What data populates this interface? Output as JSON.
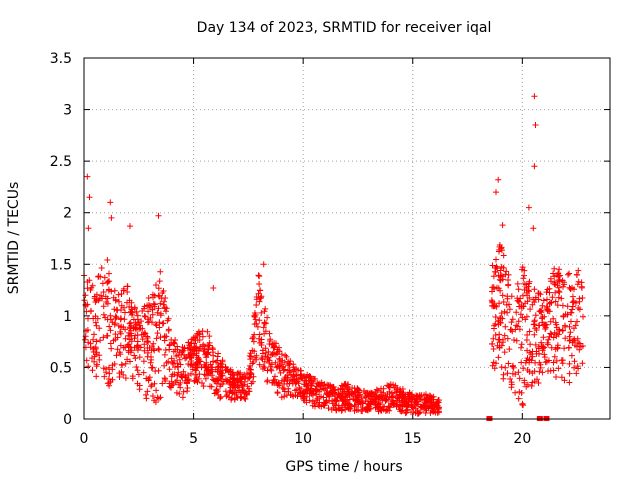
{
  "chart_data": {
    "type": "scatter",
    "title": "Day 134 of 2023, SRMTID for receiver iqal",
    "xlabel": "GPS time / hours",
    "ylabel": "SRMTID / TECUs",
    "xlim": [
      0,
      24
    ],
    "ylim": [
      0,
      3.5
    ],
    "x_ticks": [
      0,
      5,
      10,
      15,
      20
    ],
    "x_tick_labels": [
      "0",
      "5",
      "10",
      "15",
      "20"
    ],
    "y_ticks": [
      0,
      0.5,
      1,
      1.5,
      2,
      2.5,
      3,
      3.5
    ],
    "y_tick_labels": [
      "0",
      "0.5",
      "1",
      "1.5",
      "2",
      "2.5",
      "3",
      "3.5"
    ],
    "grid": true,
    "marker": "+",
    "color": "#ff0000",
    "envelope": {
      "description": "dense scatter summarised as typical value ranges per hour",
      "x": [
        0,
        0.5,
        1,
        1.5,
        2,
        2.5,
        3,
        3.5,
        4,
        4.5,
        5,
        5.5,
        6,
        6.5,
        7,
        7.5,
        8,
        8.5,
        9,
        9.5,
        10,
        10.5,
        11,
        11.5,
        12,
        12.5,
        13,
        13.5,
        14,
        14.5,
        15,
        15.5,
        16.2
      ],
      "low": [
        0.5,
        0.4,
        0.3,
        0.35,
        0.4,
        0.3,
        0.1,
        0.2,
        0.3,
        0.2,
        0.35,
        0.3,
        0.2,
        0.2,
        0.15,
        0.2,
        0.5,
        0.3,
        0.2,
        0.2,
        0.15,
        0.12,
        0.1,
        0.08,
        0.08,
        0.07,
        0.07,
        0.07,
        0.08,
        0.06,
        0.05,
        0.05,
        0.05
      ],
      "high": [
        1.5,
        1.3,
        1.6,
        1.2,
        1.3,
        1.0,
        1.2,
        1.5,
        0.8,
        0.7,
        0.8,
        0.9,
        0.7,
        0.5,
        0.45,
        0.5,
        1.5,
        0.8,
        0.7,
        0.55,
        0.45,
        0.4,
        0.35,
        0.3,
        0.35,
        0.3,
        0.25,
        0.3,
        0.35,
        0.3,
        0.25,
        0.25,
        0.2
      ]
    },
    "envelope_late": {
      "x": [
        18.6,
        19.0,
        19.5,
        20.0,
        20.5,
        21.0,
        21.5,
        22.0,
        22.5,
        22.8
      ],
      "low": [
        0.5,
        0.4,
        0.3,
        0.1,
        0.3,
        0.4,
        0.4,
        0.3,
        0.4,
        0.5
      ],
      "high": [
        1.5,
        1.7,
        1.4,
        1.5,
        1.3,
        1.2,
        1.5,
        1.4,
        1.5,
        1.3
      ]
    },
    "spikes": [
      {
        "x": 0.15,
        "y": 2.35
      },
      {
        "x": 0.25,
        "y": 2.15
      },
      {
        "x": 0.2,
        "y": 1.85
      },
      {
        "x": 1.2,
        "y": 2.1
      },
      {
        "x": 1.25,
        "y": 1.95
      },
      {
        "x": 2.1,
        "y": 1.87
      },
      {
        "x": 3.4,
        "y": 1.97
      },
      {
        "x": 8.2,
        "y": 1.5
      },
      {
        "x": 5.9,
        "y": 1.27
      },
      {
        "x": 18.8,
        "y": 2.2
      },
      {
        "x": 18.9,
        "y": 2.32
      },
      {
        "x": 19.1,
        "y": 1.88
      },
      {
        "x": 20.3,
        "y": 2.05
      },
      {
        "x": 20.55,
        "y": 3.13
      },
      {
        "x": 20.6,
        "y": 2.85
      },
      {
        "x": 20.55,
        "y": 2.45
      },
      {
        "x": 20.5,
        "y": 1.85
      }
    ],
    "zero_markers": [
      18.5,
      20.8,
      21.1
    ]
  }
}
